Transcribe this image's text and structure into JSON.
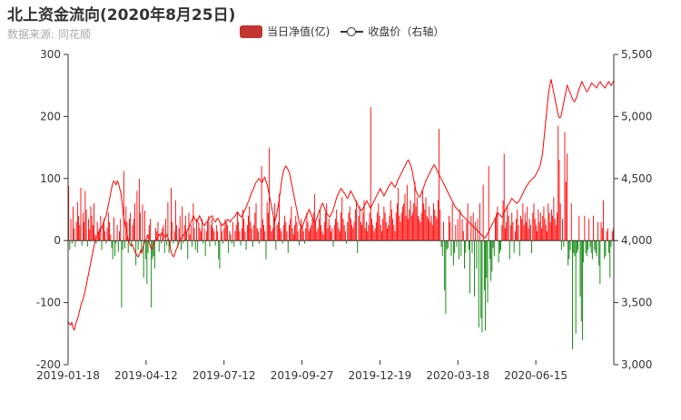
{
  "title": "北上资金流向(2020年8月25日)",
  "subtitle": "数据来源: 同花顺",
  "legend": {
    "bar_label": "当日净值(亿)",
    "line_label": "收盘价（右轴）"
  },
  "colors": {
    "positive": "#ff0000",
    "negative": "#008000",
    "line": "#ff0000",
    "legend_bar": "#c23531",
    "axis": "#333333"
  },
  "chart_data": {
    "type": "bar",
    "title": "北上资金流向(2020年8月25日)",
    "x_tick_labels": [
      "2019-01-18",
      "2019-04-12",
      "2019-07-12",
      "2019-09-27",
      "2019-12-19",
      "2020-03-18",
      "2020-06-15"
    ],
    "y_left": {
      "ticks": [
        -200,
        -100,
        0,
        100,
        200,
        300
      ],
      "range": [
        -200,
        300
      ]
    },
    "y_right": {
      "ticks": [
        "3,000",
        "3,500",
        "4,000",
        "4,500",
        "5,000",
        "5,500"
      ],
      "range": [
        3000,
        5500
      ]
    },
    "series": [
      {
        "name": "当日净值(亿)",
        "type": "bar",
        "axis": "left",
        "values": [
          88,
          -15,
          35,
          -5,
          55,
          20,
          -10,
          30,
          62,
          40,
          25,
          85,
          -8,
          45,
          30,
          80,
          50,
          -10,
          35,
          18,
          55,
          40,
          25,
          60,
          10,
          -5,
          30,
          15,
          20,
          40,
          -15,
          25,
          35,
          15,
          -5,
          20,
          45,
          30,
          10,
          -12,
          -30,
          38,
          -25,
          -5,
          25,
          -18,
          15,
          35,
          -108,
          -15,
          112,
          -12,
          55,
          30,
          -20,
          35,
          45,
          -10,
          25,
          35,
          60,
          -40,
          80,
          -15,
          100,
          45,
          -20,
          58,
          -60,
          48,
          -30,
          -70,
          -20,
          25,
          35,
          -108,
          -30,
          -25,
          -45,
          20,
          15,
          30,
          -18,
          10,
          -5,
          20,
          25,
          -20,
          35,
          -8,
          62,
          -20,
          -10,
          85,
          30,
          -5,
          15,
          65,
          25,
          -12,
          20,
          40,
          -15,
          55,
          -5,
          25,
          40,
          15,
          -30,
          45,
          10,
          25,
          -10,
          60,
          20,
          -15,
          35,
          -20,
          30,
          20,
          15,
          35,
          -5,
          20,
          -25,
          15,
          30,
          40,
          -10,
          25,
          35,
          20,
          15,
          -8,
          25,
          15,
          -30,
          -45,
          28,
          15,
          -5,
          20,
          35,
          30,
          25,
          -20,
          15,
          10,
          -5,
          30,
          -10,
          15,
          25,
          45,
          30,
          15,
          -8,
          20,
          50,
          35,
          15,
          -15,
          25,
          40,
          55,
          30,
          20,
          -10,
          25,
          45,
          60,
          20,
          15,
          -5,
          20,
          120,
          35,
          25,
          15,
          -30,
          62,
          45,
          150,
          25,
          15,
          20,
          35,
          60,
          -15,
          25,
          30,
          75,
          20,
          15,
          -5,
          25,
          40,
          30,
          15,
          -20,
          25,
          35,
          55,
          20,
          10,
          25,
          40,
          30,
          15,
          -8,
          20,
          35,
          25,
          15,
          -5,
          20,
          45,
          30,
          15,
          20,
          25,
          35,
          45,
          75,
          30,
          15,
          20,
          35,
          50,
          25,
          15,
          10,
          30,
          45,
          60,
          20,
          35,
          25,
          15,
          20,
          -10,
          25,
          35,
          50,
          30,
          20,
          15,
          45,
          70,
          35,
          25,
          15,
          -5,
          30,
          45,
          55,
          35,
          25,
          20,
          30,
          50,
          65,
          -20,
          40,
          55,
          30,
          25,
          45,
          65,
          20,
          30,
          15,
          25,
          45,
          215,
          35,
          25,
          15,
          20,
          30,
          45,
          60,
          40,
          25,
          15,
          35,
          55,
          45,
          30,
          20,
          25,
          40,
          65,
          50,
          35,
          25,
          15,
          45,
          60,
          85,
          40,
          30,
          45,
          55,
          60,
          75,
          40,
          90,
          35,
          50,
          65,
          40,
          45,
          60,
          95,
          55,
          70,
          40,
          35,
          30,
          45,
          80,
          60,
          50,
          70,
          40,
          35,
          55,
          30,
          40,
          25,
          60,
          50,
          40,
          35,
          65,
          180,
          50,
          -10,
          -25,
          30,
          -80,
          -118,
          -15,
          -12,
          40,
          30,
          -25,
          60,
          -40,
          -20,
          25,
          -10,
          35,
          -30,
          50,
          -25,
          35,
          15,
          -45,
          -20,
          30,
          60,
          -15,
          -85,
          40,
          -20,
          45,
          -90,
          30,
          -45,
          35,
          -140,
          60,
          -125,
          -148,
          90,
          -80,
          -145,
          -60,
          -100,
          120,
          -30,
          -65,
          -50,
          -12,
          -25,
          35,
          45,
          55,
          -35,
          -20,
          -15,
          25,
          65,
          140,
          20,
          30,
          55,
          40,
          -30,
          25,
          45,
          30,
          -20,
          15,
          35,
          50,
          25,
          -25,
          40,
          35,
          60,
          25,
          45,
          30,
          55,
          20,
          35,
          25,
          -20,
          45,
          60,
          35,
          25,
          15,
          50,
          30,
          45,
          20,
          40,
          55,
          35,
          25,
          15,
          60,
          45,
          30,
          50,
          40,
          70,
          35,
          25,
          45,
          185,
          130,
          60,
          -15,
          35,
          -10,
          175,
          95,
          140,
          -40,
          -30,
          -15,
          60,
          -175,
          -20,
          -25,
          -150,
          -20,
          -15,
          40,
          -90,
          -130,
          -160,
          -35,
          40,
          -20,
          -25,
          -15,
          35,
          -10,
          -20,
          -30,
          40,
          -15,
          -20,
          -25,
          30,
          -40,
          -70,
          30,
          20,
          65,
          -30,
          -25,
          15,
          20,
          -20,
          -60,
          -10,
          15,
          20
        ]
      },
      {
        "name": "收盘价（右轴）",
        "type": "line",
        "axis": "right",
        "values": [
          3350,
          3330,
          3320,
          3340,
          3300,
          3280,
          3320,
          3350,
          3380,
          3420,
          3460,
          3500,
          3520,
          3560,
          3600,
          3650,
          3700,
          3750,
          3800,
          3850,
          3900,
          3950,
          4000,
          4020,
          4050,
          4070,
          4080,
          4100,
          4120,
          4150,
          4180,
          4200,
          4250,
          4300,
          4350,
          4400,
          4450,
          4480,
          4470,
          4450,
          4480,
          4460,
          4420,
          4380,
          4300,
          4200,
          4150,
          4100,
          4050,
          4000,
          3980,
          3960,
          3970,
          3950,
          3920,
          3900,
          3880,
          3870,
          3890,
          3920,
          3900,
          3950,
          3980,
          4000,
          4020,
          4050,
          3980,
          3950,
          3930,
          3950,
          3980,
          4000,
          4010,
          4030,
          4050,
          4040,
          4060,
          4050,
          4040,
          4030,
          4050,
          4030,
          4000,
          3950,
          3900,
          3880,
          3870,
          3900,
          3930,
          3950,
          3980,
          4000,
          4020,
          4030,
          4050,
          4060,
          4070,
          4080,
          4100,
          4120,
          4150,
          4170,
          4200,
          4180,
          4160,
          4150,
          4180,
          4200,
          4170,
          4150,
          4130,
          4120,
          4140,
          4150,
          4170,
          4180,
          4190,
          4200,
          4180,
          4160,
          4150,
          4170,
          4180,
          4160,
          4140,
          4130,
          4120,
          4140,
          4150,
          4160,
          4170,
          4160,
          4150,
          4170,
          4180,
          4190,
          4200,
          4220,
          4230,
          4210,
          4200,
          4190,
          4210,
          4230,
          4250,
          4270,
          4300,
          4320,
          4350,
          4380,
          4400,
          4420,
          4450,
          4470,
          4480,
          4500,
          4490,
          4480,
          4470,
          4500,
          4510,
          4480,
          4450,
          4400,
          4350,
          4300,
          4250,
          4200,
          4150,
          4180,
          4230,
          4280,
          4350,
          4420,
          4500,
          4550,
          4580,
          4600,
          4590,
          4570,
          4550,
          4500,
          4450,
          4400,
          4350,
          4300,
          4250,
          4200,
          4150,
          4120,
          4100,
          4120,
          4150,
          4180,
          4200,
          4220,
          4250,
          4230,
          4200,
          4180,
          4160,
          4150,
          4170,
          4200,
          4230,
          4250,
          4280,
          4300,
          4280,
          4250,
          4230,
          4210,
          4200,
          4190,
          4210,
          4230,
          4260,
          4290,
          4330,
          4360,
          4380,
          4400,
          4420,
          4410,
          4390,
          4380,
          4360,
          4340,
          4350,
          4380,
          4400,
          4380,
          4360,
          4340,
          4320,
          4300,
          4280,
          4260,
          4250,
          4240,
          4260,
          4280,
          4300,
          4320,
          4300,
          4280,
          4260,
          4280,
          4300,
          4320,
          4340,
          4360,
          4380,
          4400,
          4420,
          4400,
          4380,
          4360,
          4380,
          4400,
          4420,
          4440,
          4450,
          4470,
          4460,
          4440,
          4430,
          4450,
          4480,
          4500,
          4520,
          4540,
          4560,
          4580,
          4600,
          4620,
          4640,
          4650,
          4620,
          4600,
          4560,
          4500,
          4450,
          4400,
          4380,
          4360,
          4350,
          4370,
          4400,
          4420,
          4450,
          4480,
          4500,
          4520,
          4540,
          4560,
          4580,
          4600,
          4610,
          4590,
          4570,
          4550,
          4530,
          4510,
          4490,
          4470,
          4450,
          4430,
          4410,
          4390,
          4370,
          4350,
          4330,
          4310,
          4290,
          4270,
          4260,
          4250,
          4240,
          4230,
          4210,
          4200,
          4190,
          4180,
          4170,
          4160,
          4150,
          4140,
          4130,
          4120,
          4110,
          4100,
          4090,
          4080,
          4070,
          4060,
          4050,
          4040,
          4030,
          4020,
          4030,
          4050,
          4070,
          4090,
          4110,
          4130,
          4150,
          4170,
          4190,
          4210,
          4220,
          4210,
          4200,
          4190,
          4210,
          4230,
          4250,
          4270,
          4290,
          4300,
          4320,
          4340,
          4330,
          4320,
          4310,
          4300,
          4310,
          4320,
          4340,
          4360,
          4380,
          4400,
          4420,
          4440,
          4450,
          4470,
          4480,
          4490,
          4500,
          4510,
          4520,
          4540,
          4560,
          4580,
          4600,
          4650,
          4700,
          4800,
          4900,
          5000,
          5100,
          5200,
          5250,
          5300,
          5250,
          5200,
          5150,
          5100,
          5050,
          5000,
          4990,
          5000,
          5050,
          5100,
          5150,
          5200,
          5250,
          5230,
          5200,
          5180,
          5150,
          5130,
          5120,
          5140,
          5160,
          5200,
          5230,
          5250,
          5280,
          5260,
          5240,
          5220,
          5200,
          5210,
          5230,
          5250,
          5270,
          5260,
          5250,
          5240,
          5230,
          5250,
          5270,
          5280,
          5260,
          5250,
          5240,
          5230,
          5250,
          5270,
          5280,
          5260,
          5250,
          5270,
          5290
        ]
      }
    ],
    "grid": false,
    "legend_position": "top-center"
  }
}
